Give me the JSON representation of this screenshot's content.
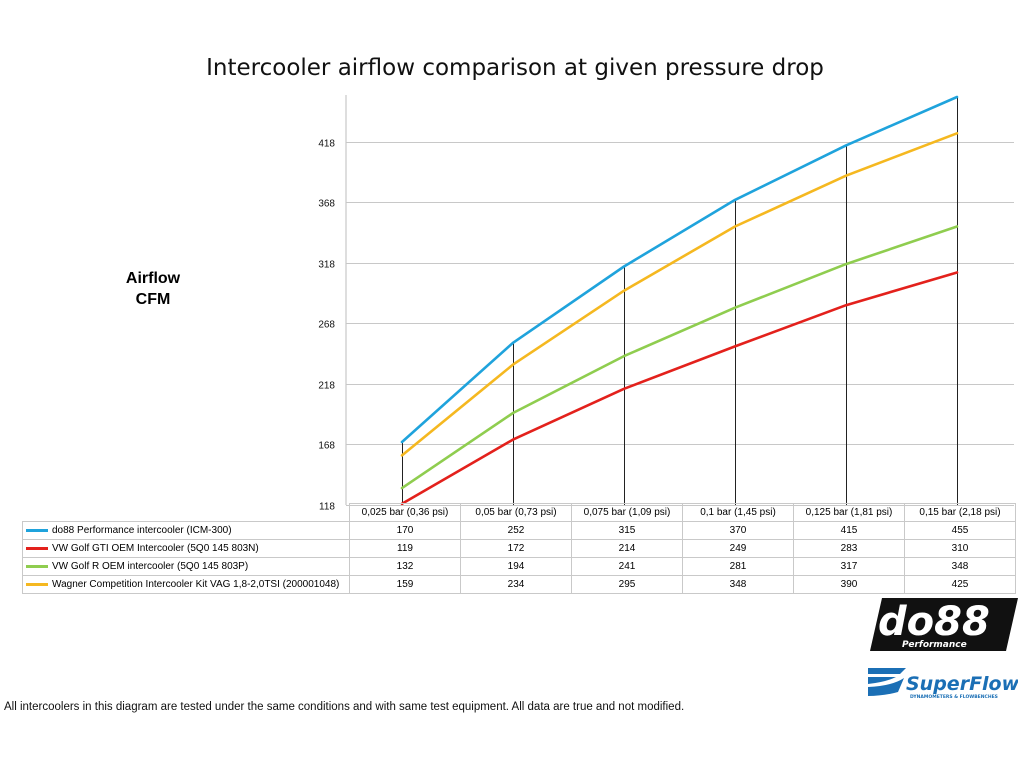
{
  "chart_data": {
    "type": "line",
    "title": "Intercooler airflow comparison at given pressure drop",
    "ylabel": "Airflow\nCFM",
    "ylabel_lines": [
      "Airflow",
      "CFM"
    ],
    "xlabel": "",
    "ylim": [
      118,
      455
    ],
    "yticks": [
      118,
      168,
      218,
      268,
      318,
      368,
      418
    ],
    "grid": true,
    "categories": [
      "0,025 bar (0,36 psi)",
      "0,05 bar (0,73 psi)",
      "0,075 bar (1,09 psi)",
      "0,1 bar (1,45 psi)",
      "0,125 bar (1,81 psi)",
      "0,15 bar (2,18 psi)"
    ],
    "series": [
      {
        "name": "do88 Performance intercooler (ICM-300)",
        "color": "#1fa3dc",
        "values": [
          170,
          252,
          315,
          370,
          415,
          455
        ]
      },
      {
        "name": "VW Golf GTI OEM Intercooler (5Q0 145 803N)",
        "color": "#e3211c",
        "values": [
          119,
          172,
          214,
          249,
          283,
          310
        ]
      },
      {
        "name": "VW Golf R OEM intercooler (5Q0 145 803P)",
        "color": "#8fcd4f",
        "values": [
          132,
          194,
          241,
          281,
          317,
          348
        ]
      },
      {
        "name": "Wagner Competition Intercooler Kit VAG 1,8-2,0TSI (200001048)",
        "color": "#f5b820",
        "values": [
          159,
          234,
          295,
          348,
          390,
          425
        ]
      }
    ]
  },
  "footer_text": "All intercoolers in this diagram are tested under the same conditions and with same test equipment. All data are true and not modified.",
  "logos": {
    "do88_main": "do88",
    "do88_sub": "Performance",
    "superflow_main": "SuperFlow",
    "superflow_sub": "DYNAMOMETERS & FLOWBENCHES"
  }
}
